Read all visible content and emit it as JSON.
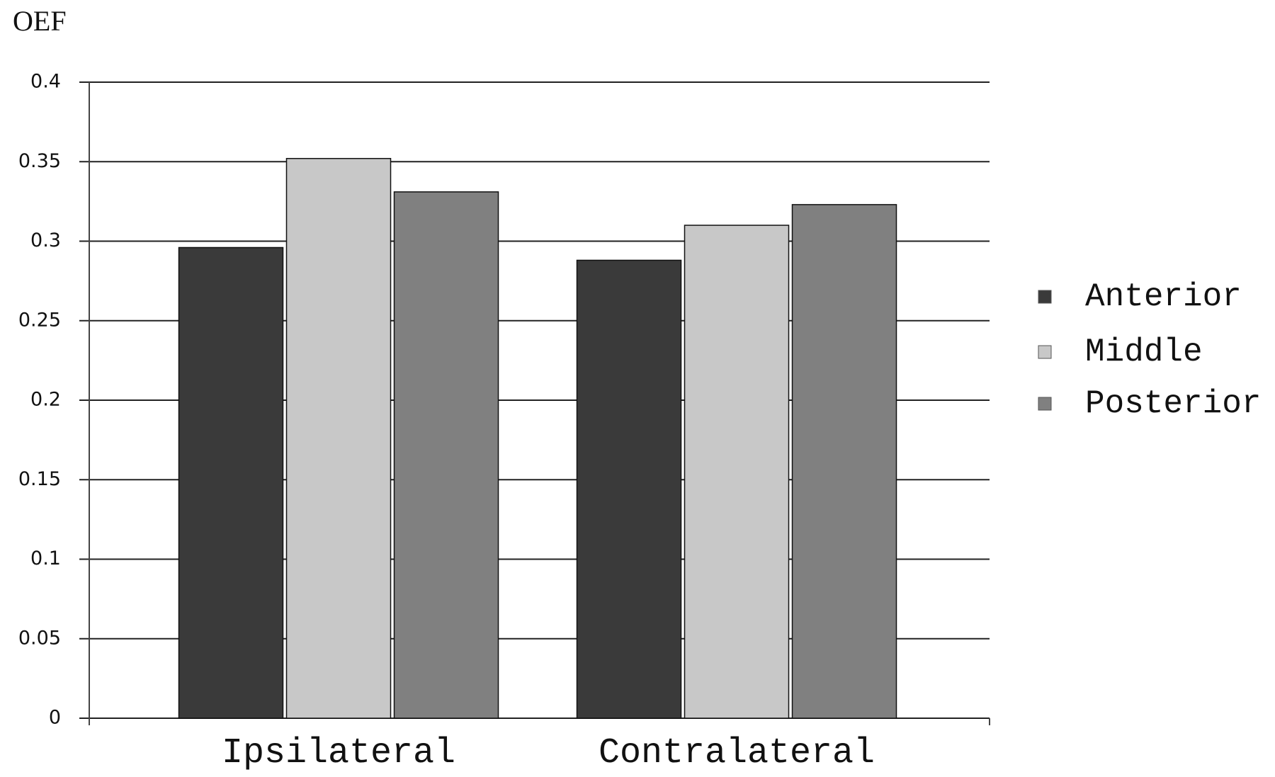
{
  "chart_data": {
    "type": "bar",
    "title": "OEF",
    "categories": [
      "Ipsilateral",
      "Contralateral"
    ],
    "series": [
      {
        "name": "Anterior",
        "color": "#3a3a3a",
        "values": [
          0.296,
          0.288
        ]
      },
      {
        "name": "Middle",
        "color": "#c8c8c8",
        "values": [
          0.352,
          0.31
        ]
      },
      {
        "name": "Posterior",
        "color": "#808080",
        "values": [
          0.331,
          0.323
        ]
      }
    ],
    "ylim": [
      0,
      0.4
    ],
    "yticks": [
      0,
      0.05,
      0.1,
      0.15,
      0.2,
      0.25,
      0.3,
      0.35,
      0.4
    ],
    "grid": true,
    "legend": "right"
  }
}
